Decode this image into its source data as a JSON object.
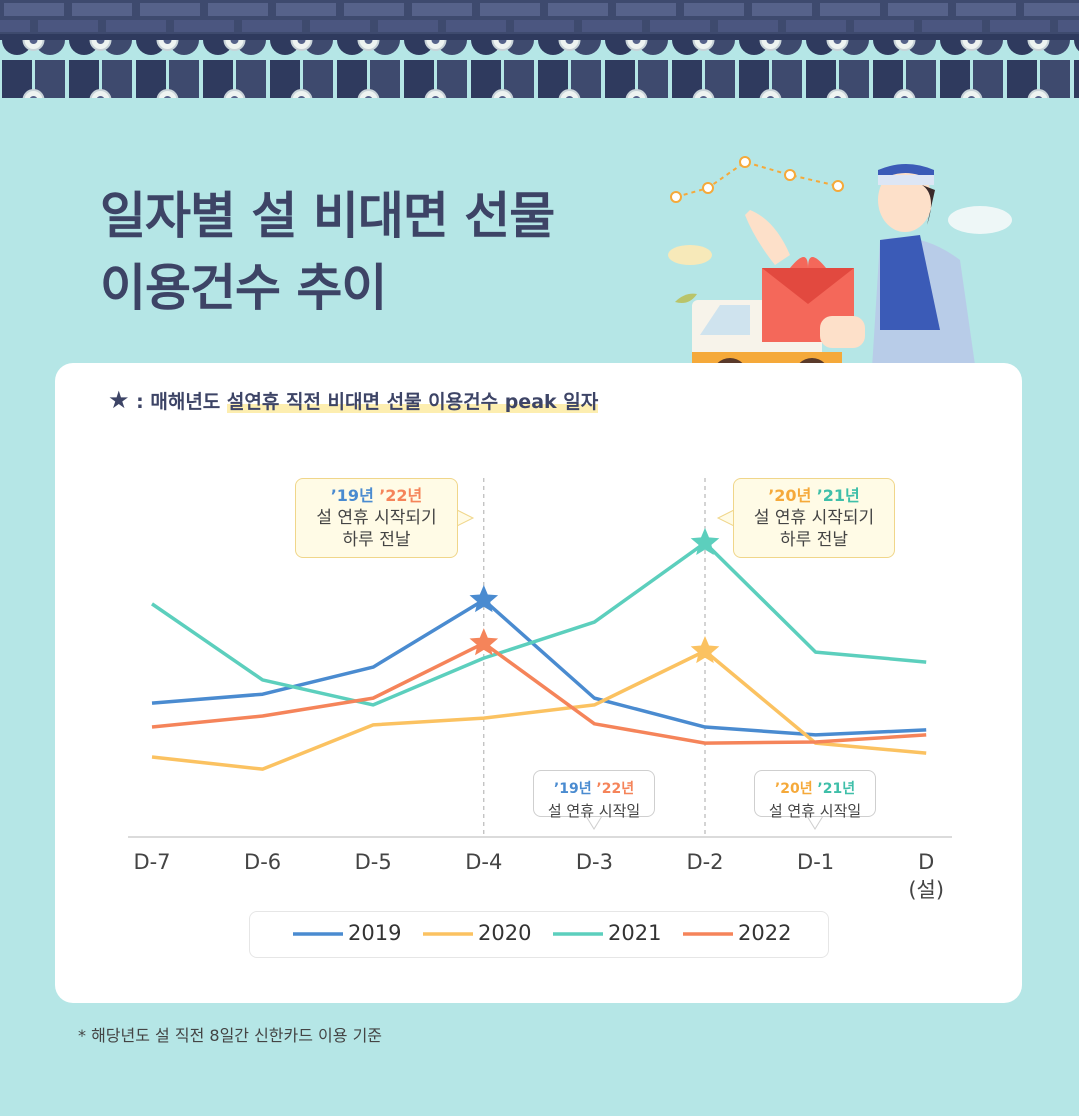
{
  "title": [
    "일자별 설 비대면 선물",
    "이용건수 추이"
  ],
  "note": {
    "prefix": ": 매해년도",
    "highlight": "설연휴 직전 비대면 선물 이용건수 peak 일자"
  },
  "footnote": "* 해당년도 설 직전 8일간 신한카드 이용 기준",
  "chart_data": {
    "type": "line",
    "categories": [
      "D-7",
      "D-6",
      "D-5",
      "D-4",
      "D-3",
      "D-2",
      "D-1",
      "D\n(설)"
    ],
    "ylim": [
      0,
      100
    ],
    "series": [
      {
        "name": "2019",
        "color": "#4a8bd0",
        "values": [
          37.5,
          40,
          47.6,
          66.4,
          38.9,
          30.8,
          28.6,
          30
        ],
        "peak": 3
      },
      {
        "name": "2020",
        "color": "#fbc261",
        "values": [
          22.4,
          19,
          31.4,
          33.3,
          37,
          52.1,
          26.3,
          23.5
        ],
        "peak": 5
      },
      {
        "name": "2021",
        "color": "#5ccfbd",
        "values": [
          65.3,
          44,
          37,
          50.1,
          60.2,
          82.4,
          51.8,
          49
        ],
        "peak": 5
      },
      {
        "name": "2022",
        "color": "#f5845a",
        "values": [
          30.8,
          33.9,
          38.9,
          54.3,
          31.7,
          26.3,
          26.6,
          28.6
        ],
        "peak": 3
      }
    ],
    "annotations": [
      {
        "years": [
          "’19년",
          "’22년"
        ],
        "colors": [
          "#4a8bd0",
          "#f5845a"
        ],
        "text": [
          "설 연휴 시작되기",
          "하루 전날"
        ]
      },
      {
        "years": [
          "’20년",
          "’21년"
        ],
        "colors": [
          "#f5a93a",
          "#3fbfa9"
        ],
        "text": [
          "설 연휴 시작되기",
          "하루 전날"
        ]
      },
      {
        "years": [
          "’19년",
          "’22년"
        ],
        "colors": [
          "#4a8bd0",
          "#f5845a"
        ],
        "text": [
          "설 연휴 시작일"
        ]
      },
      {
        "years": [
          "’20년",
          "’21년"
        ],
        "colors": [
          "#f5a93a",
          "#3fbfa9"
        ],
        "text": [
          "설 연휴 시작일"
        ]
      }
    ]
  }
}
